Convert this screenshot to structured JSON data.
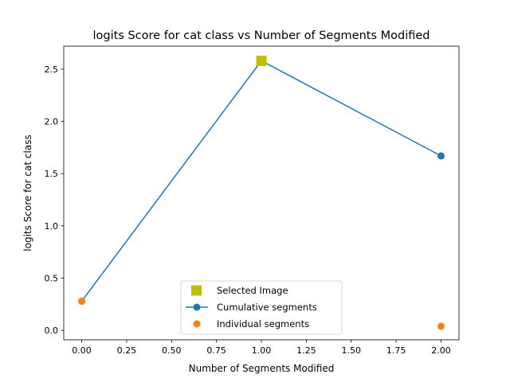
{
  "chart_data": {
    "type": "line",
    "title": "logits Score for cat class vs Number of Segments Modified",
    "xlabel": "Number of Segments Modified",
    "ylabel": "logits Score for cat class",
    "xlim": [
      -0.1,
      2.1
    ],
    "ylim": [
      -0.09,
      2.72
    ],
    "xticks": [
      "0.00",
      "0.25",
      "0.50",
      "0.75",
      "1.00",
      "1.25",
      "1.50",
      "1.75",
      "2.00"
    ],
    "yticks": [
      "0.0",
      "0.5",
      "1.0",
      "1.5",
      "2.0",
      "2.5"
    ],
    "grid": false,
    "legend_position": "lower-center",
    "series": [
      {
        "name": "Selected Image",
        "marker": "square",
        "color": "#bfbf00",
        "x": [
          1.0
        ],
        "y": [
          2.58
        ]
      },
      {
        "name": "Cumulative segments",
        "marker": "circle-line",
        "color": "#1f77b4",
        "x": [
          0.0,
          1.0,
          2.0
        ],
        "y": [
          0.28,
          2.58,
          1.67
        ]
      },
      {
        "name": "Individual segments",
        "marker": "circle",
        "color": "#ff7f0e",
        "x": [
          0.0,
          2.0
        ],
        "y": [
          0.28,
          0.04
        ]
      }
    ]
  }
}
